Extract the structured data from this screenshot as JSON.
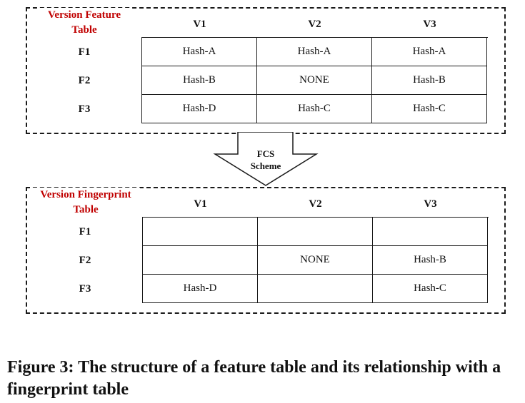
{
  "feature_table": {
    "title_line1": "Version Feature",
    "title_line2": "Table",
    "columns": [
      "V1",
      "V2",
      "V3"
    ],
    "rows": [
      {
        "label": "F1",
        "cells": [
          "Hash-A",
          "Hash-A",
          "Hash-A"
        ]
      },
      {
        "label": "F2",
        "cells": [
          "Hash-B",
          "NONE",
          "Hash-B"
        ]
      },
      {
        "label": "F3",
        "cells": [
          "Hash-D",
          "Hash-C",
          "Hash-C"
        ]
      }
    ]
  },
  "arrow": {
    "label_line1": "FCS",
    "label_line2": "Scheme"
  },
  "fingerprint_table": {
    "title_line1": "Version Fingerprint",
    "title_line2": "Table",
    "columns": [
      "V1",
      "V2",
      "V3"
    ],
    "rows": [
      {
        "label": "F1",
        "cells": [
          "",
          "",
          ""
        ]
      },
      {
        "label": "F2",
        "cells": [
          "",
          "NONE",
          "Hash-B"
        ]
      },
      {
        "label": "F3",
        "cells": [
          "Hash-D",
          "",
          "Hash-C"
        ]
      }
    ]
  },
  "caption": "Figure 3: The structure of a feature table and its relationship with a fingerprint table"
}
